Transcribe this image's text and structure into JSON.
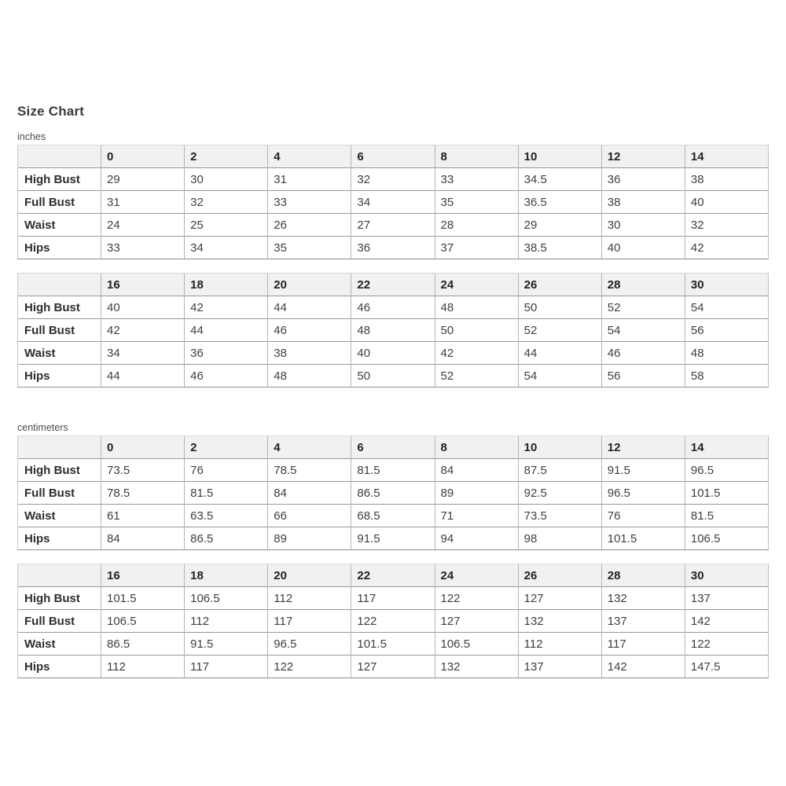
{
  "page": {
    "title": "Size Chart"
  },
  "sections": [
    {
      "unit_label": "inches",
      "tables": [
        {
          "sizes": [
            "0",
            "2",
            "4",
            "6",
            "8",
            "10",
            "12",
            "14"
          ],
          "rows": [
            {
              "label": "High Bust",
              "values": [
                "29",
                "30",
                "31",
                "32",
                "33",
                "34.5",
                "36",
                "38"
              ]
            },
            {
              "label": "Full Bust",
              "values": [
                "31",
                "32",
                "33",
                "34",
                "35",
                "36.5",
                "38",
                "40"
              ]
            },
            {
              "label": "Waist",
              "values": [
                "24",
                "25",
                "26",
                "27",
                "28",
                "29",
                "30",
                "32"
              ]
            },
            {
              "label": "Hips",
              "values": [
                "33",
                "34",
                "35",
                "36",
                "37",
                "38.5",
                "40",
                "42"
              ]
            }
          ]
        },
        {
          "sizes": [
            "16",
            "18",
            "20",
            "22",
            "24",
            "26",
            "28",
            "30"
          ],
          "rows": [
            {
              "label": "High Bust",
              "values": [
                "40",
                "42",
                "44",
                "46",
                "48",
                "50",
                "52",
                "54"
              ]
            },
            {
              "label": "Full Bust",
              "values": [
                "42",
                "44",
                "46",
                "48",
                "50",
                "52",
                "54",
                "56"
              ]
            },
            {
              "label": "Waist",
              "values": [
                "34",
                "36",
                "38",
                "40",
                "42",
                "44",
                "46",
                "48"
              ]
            },
            {
              "label": "Hips",
              "values": [
                "44",
                "46",
                "48",
                "50",
                "52",
                "54",
                "56",
                "58"
              ]
            }
          ]
        }
      ]
    },
    {
      "unit_label": "centimeters",
      "tables": [
        {
          "sizes": [
            "0",
            "2",
            "4",
            "6",
            "8",
            "10",
            "12",
            "14"
          ],
          "rows": [
            {
              "label": "High Bust",
              "values": [
                "73.5",
                "76",
                "78.5",
                "81.5",
                "84",
                "87.5",
                "91.5",
                "96.5"
              ]
            },
            {
              "label": "Full Bust",
              "values": [
                "78.5",
                "81.5",
                "84",
                "86.5",
                "89",
                "92.5",
                "96.5",
                "101.5"
              ]
            },
            {
              "label": "Waist",
              "values": [
                "61",
                "63.5",
                "66",
                "68.5",
                "71",
                "73.5",
                "76",
                "81.5"
              ]
            },
            {
              "label": "Hips",
              "values": [
                "84",
                "86.5",
                "89",
                "91.5",
                "94",
                "98",
                "101.5",
                "106.5"
              ]
            }
          ]
        },
        {
          "sizes": [
            "16",
            "18",
            "20",
            "22",
            "24",
            "26",
            "28",
            "30"
          ],
          "rows": [
            {
              "label": "High Bust",
              "values": [
                "101.5",
                "106.5",
                "112",
                "117",
                "122",
                "127",
                "132",
                "137"
              ]
            },
            {
              "label": "Full Bust",
              "values": [
                "106.5",
                "112",
                "117",
                "122",
                "127",
                "132",
                "137",
                "142"
              ]
            },
            {
              "label": "Waist",
              "values": [
                "86.5",
                "91.5",
                "96.5",
                "101.5",
                "106.5",
                "112",
                "117",
                "122"
              ]
            },
            {
              "label": "Hips",
              "values": [
                "112",
                "117",
                "122",
                "127",
                "132",
                "137",
                "142",
                "147.5"
              ]
            }
          ]
        }
      ]
    }
  ],
  "colors": {
    "header_bg": "#f1f1f1",
    "row_separator": "#979797",
    "column_separator": "#b5b5b5",
    "title_text": "#3b3b3b",
    "body_text": "#3f3f3f"
  }
}
